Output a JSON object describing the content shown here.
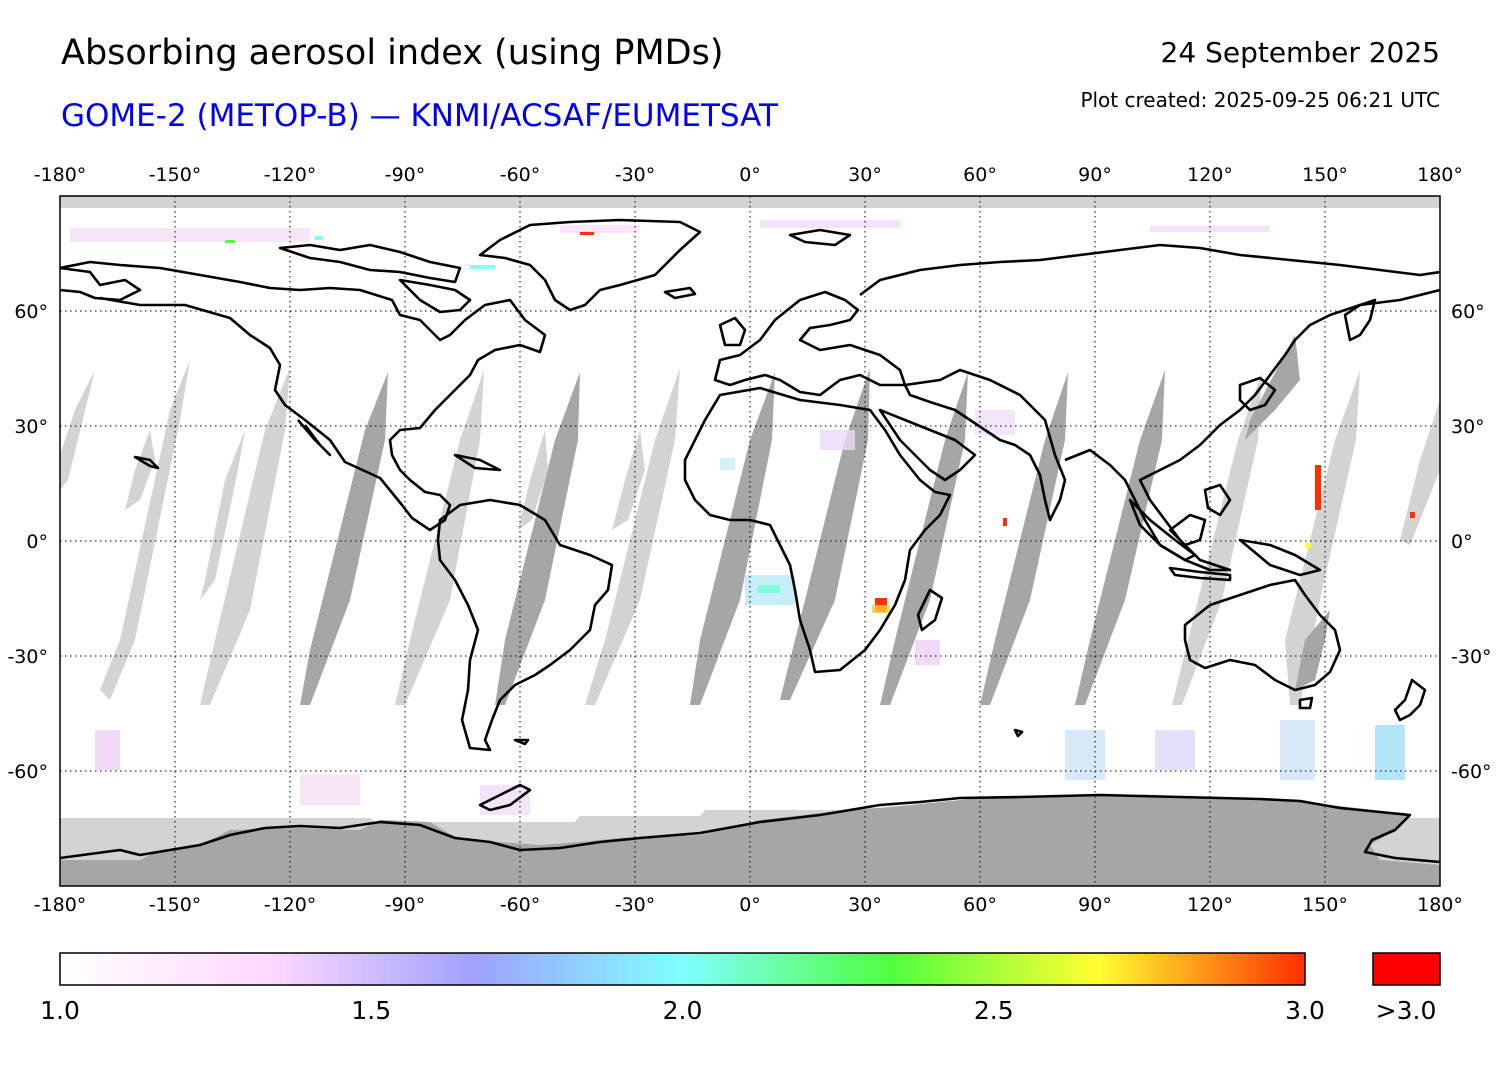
{
  "header": {
    "title": "Absorbing aerosol index (using PMDs)",
    "subtitle": "GOME-2 (METOP-B) — KNMI/ACSAF/EUMETSAT",
    "date": "24 September 2025",
    "created": "Plot created: 2025-09-25 06:21 UTC"
  },
  "map": {
    "projection": "equirectangular",
    "lon_range": [
      -180,
      180
    ],
    "lat_range": [
      -90,
      90
    ],
    "lon_ticks": [
      "-180°",
      "-150°",
      "-120°",
      "-90°",
      "-60°",
      "-30°",
      "0°",
      "30°",
      "60°",
      "90°",
      "120°",
      "150°",
      "180°"
    ],
    "lat_ticks": [
      "60°",
      "30°",
      "0°",
      "-30°",
      "-60°"
    ],
    "grid": "dotted",
    "colors": {
      "no_data": "#d3d3d3",
      "no_data_dark": "#a6a6a6",
      "coastline": "#000000"
    }
  },
  "colorbar": {
    "min": 1.0,
    "max": 3.0,
    "tick_labels": [
      "1.0",
      "1.5",
      "2.0",
      "2.5",
      "3.0"
    ],
    "overflow_label": ">3.0",
    "overflow_color": "#ff0000",
    "stops": [
      "#ffffff",
      "#ffd8ff",
      "#a0a0ff",
      "#80ffff",
      "#50ff40",
      "#ffff30",
      "#ff3000"
    ]
  }
}
